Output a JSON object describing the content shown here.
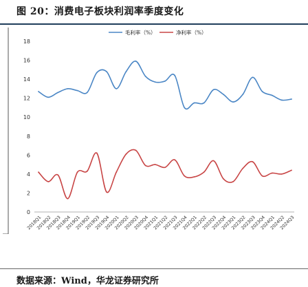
{
  "figure": {
    "title": "图 20：消费电子板块利润率季度变化",
    "source": "数据来源：Wind，华龙证券研究所"
  },
  "chart_data": {
    "type": "line",
    "categories": [
      "2018Q1",
      "2018Q2",
      "2018Q3",
      "2018Q4",
      "2019Q1",
      "2019Q2",
      "2019Q3",
      "2019Q4",
      "2020Q1",
      "2020Q2",
      "2020Q3",
      "2020Q4",
      "2021Q1",
      "2021Q2",
      "2021Q3",
      "2021Q4",
      "2022Q1",
      "2022Q2",
      "2022Q3",
      "2022Q4",
      "2023Q1",
      "2023Q2",
      "2023Q3",
      "2023Q4",
      "2024Q1",
      "2024Q2",
      "2024Q3"
    ],
    "series": [
      {
        "name": "毛利率（%）",
        "color": "#4a86c5",
        "values": [
          12.7,
          12.1,
          12.6,
          13.0,
          12.8,
          12.6,
          14.7,
          14.8,
          13.0,
          14.8,
          15.9,
          14.3,
          13.7,
          13.8,
          14.4,
          11.0,
          11.5,
          11.5,
          12.9,
          12.4,
          11.6,
          12.4,
          14.2,
          12.7,
          12.3,
          11.8,
          11.9
        ]
      },
      {
        "name": "净利率（%）",
        "color": "#c84545",
        "values": [
          4.2,
          3.2,
          3.9,
          1.4,
          4.2,
          4.3,
          6.2,
          2.1,
          4.2,
          6.1,
          6.5,
          4.9,
          5.0,
          4.7,
          5.5,
          3.8,
          3.7,
          4.2,
          5.4,
          3.5,
          3.2,
          4.6,
          5.3,
          3.8,
          4.1,
          4.0,
          4.4
        ]
      }
    ],
    "ylim": [
      0,
      18
    ],
    "yticks": [
      0,
      2,
      4,
      6,
      8,
      10,
      12,
      14,
      16,
      18
    ],
    "legend": "top-center",
    "grid": false
  }
}
